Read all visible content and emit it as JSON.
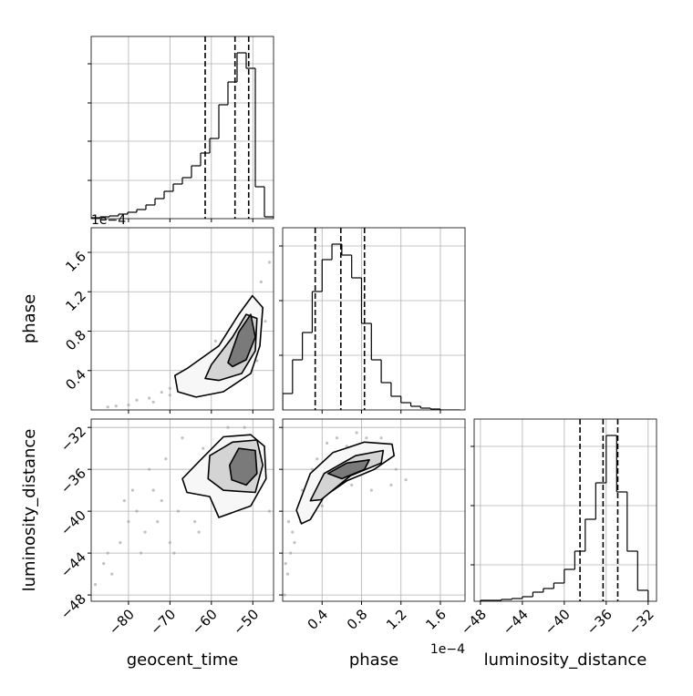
{
  "chart_data": [
    {
      "type": "histogram",
      "bins": [
        -89,
        -86.8,
        -84.6,
        -82.4,
        -80.2,
        -78,
        -75.8,
        -73.6,
        -71.4,
        -69.2,
        -67,
        -64.8,
        -62.6,
        -60.4,
        -58.2,
        -56,
        -53.8,
        -51.6,
        -49.4,
        -47.2,
        -45
      ],
      "values": [
        1,
        2,
        3,
        5,
        7,
        10,
        15,
        22,
        30,
        38,
        45,
        58,
        72,
        88,
        125,
        150,
        182,
        165,
        35,
        2
      ],
      "color": "#000000",
      "quantiles": [
        -61.5,
        -54.3,
        -51.0
      ],
      "xlim": [
        -89,
        -45
      ],
      "xticks": [
        -80,
        -70,
        -60,
        -50
      ],
      "ylim": [
        0,
        200
      ],
      "yticks": [
        42,
        85,
        127,
        170
      ],
      "xtick_labels": false,
      "ytick_labels": false,
      "grid": true
    },
    {
      "type": "scatter",
      "color": "#9a9a9a",
      "x": [
        -85,
        -80,
        -78,
        -75,
        -72,
        -70,
        -68,
        -66,
        -64,
        -62,
        -60,
        -58,
        -56,
        -54,
        -52,
        -50,
        -48,
        -46,
        -47,
        -49,
        -53,
        -57,
        -61,
        -65,
        -70,
        -74,
        -83,
        -59,
        -55,
        -51
      ],
      "y": [
        0.03,
        0.05,
        0.1,
        0.12,
        0.18,
        0.15,
        0.25,
        0.3,
        0.28,
        0.38,
        0.45,
        0.55,
        0.62,
        0.7,
        0.9,
        1.1,
        1.3,
        1.5,
        0.9,
        0.5,
        0.35,
        0.35,
        0.25,
        0.2,
        0.22,
        0.08,
        0.04,
        0.7,
        0.85,
        0.4
      ],
      "contours": [
        {
          "fill": "#f7f7f7",
          "x": [
            -68.1,
            -68.8,
            -65.9,
            -58.2,
            -53.4,
            -50.1,
            -47.6,
            -48.3,
            -50.5,
            -57.1,
            -63.7
          ],
          "y": [
            0.185,
            0.35,
            0.42,
            0.65,
            0.97,
            1.16,
            1.04,
            0.65,
            0.37,
            0.185,
            0.13
          ]
        },
        {
          "fill": "#d4d4d4",
          "x": [
            -61.5,
            -60.0,
            -54.9,
            -51.6,
            -49.0,
            -49.4,
            -52.7,
            -58.2
          ],
          "y": [
            0.32,
            0.46,
            0.74,
            0.97,
            0.93,
            0.6,
            0.37,
            0.3
          ]
        },
        {
          "fill": "#7a7a7a",
          "x": [
            -56.0,
            -53.4,
            -50.5,
            -49.4,
            -51.6,
            -54.9
          ],
          "y": [
            0.48,
            0.79,
            0.97,
            0.74,
            0.51,
            0.44
          ]
        }
      ],
      "xlim": [
        -89,
        -45
      ],
      "xticks": [
        -80,
        -70,
        -60,
        -50
      ],
      "ylim": [
        0,
        1.85
      ],
      "yticks": [
        0.4,
        0.8,
        1.2,
        1.6
      ],
      "xtick_labels": false,
      "ytick_labels": true,
      "ylabel": "phase",
      "y_offset_label": "1e−4",
      "grid": true
    },
    {
      "type": "histogram",
      "bins": [
        0,
        0.1,
        0.2,
        0.3,
        0.4,
        0.5,
        0.6,
        0.7,
        0.8,
        0.9,
        1.0,
        1.1,
        1.2,
        1.3,
        1.4,
        1.5,
        1.6,
        1.7,
        1.8
      ],
      "values": [
        18,
        55,
        85,
        130,
        165,
        182,
        170,
        145,
        95,
        55,
        30,
        15,
        8,
        4,
        2,
        1,
        0,
        0
      ],
      "color": "#000000",
      "quantiles": [
        0.33,
        0.59,
        0.83
      ],
      "xlim": [
        0,
        1.85
      ],
      "xticks": [
        0.4,
        0.8,
        1.2,
        1.6
      ],
      "ylim": [
        0,
        200
      ],
      "yticks": [
        60,
        120,
        180
      ],
      "xtick_labels": false,
      "ytick_labels": false,
      "grid": true
    },
    {
      "type": "scatter",
      "color": "#9a9a9a",
      "x": [
        -88,
        -85,
        -82,
        -80,
        -78,
        -76,
        -74,
        -72,
        -70,
        -68,
        -66,
        -64,
        -62,
        -60,
        -58,
        -75,
        -79,
        -71,
        -67,
        -84,
        -63,
        -56,
        -52,
        -48,
        -46,
        -69,
        -73,
        -81,
        -86,
        -77
      ],
      "y": [
        -47,
        -44,
        -43,
        -41,
        -40,
        -42,
        -38,
        -39,
        -43,
        -40,
        -37,
        -41,
        -34,
        -36,
        -40,
        -36,
        -38,
        -35,
        -33,
        -46,
        -42,
        -32,
        -32,
        -34,
        -40,
        -44,
        -41,
        -39,
        -45,
        -44
      ],
      "contours": [
        {
          "fill": "#f7f7f7",
          "x": [
            -62.6,
            -57.1,
            -50.5,
            -47.2,
            -46.8,
            -50.5,
            -58.2,
            -60.4,
            -65.9,
            -67.0
          ],
          "y": [
            -35.1,
            -32.9,
            -32.7,
            -33.8,
            -36.9,
            -39.5,
            -40.6,
            -38.6,
            -38.2,
            -36.9
          ]
        },
        {
          "fill": "#d4d4d4",
          "x": [
            -60.4,
            -54.9,
            -49.0,
            -47.6,
            -49.4,
            -57.1,
            -60.8
          ],
          "y": [
            -34.7,
            -33.4,
            -33.2,
            -35.6,
            -38.2,
            -38.0,
            -36.9
          ]
        },
        {
          "fill": "#7a7a7a",
          "x": [
            -55.6,
            -53.4,
            -49.4,
            -49.0,
            -51.6,
            -55.1
          ],
          "y": [
            -35.6,
            -34.0,
            -34.2,
            -36.4,
            -37.5,
            -37.0
          ]
        }
      ],
      "xlim": [
        -89,
        -45
      ],
      "xticks": [
        {
          "value": -80,
          "label": "−80"
        },
        {
          "value": -70,
          "label": "−70"
        },
        {
          "value": -60,
          "label": "−60"
        },
        {
          "value": -50,
          "label": "−50"
        }
      ],
      "ylim": [
        -48.6,
        -31.2
      ],
      "yticks": [
        {
          "value": -48,
          "label": "−48"
        },
        {
          "value": -44,
          "label": "−44"
        },
        {
          "value": -40,
          "label": "−40"
        },
        {
          "value": -36,
          "label": "−36"
        },
        {
          "value": -32,
          "label": "−32"
        }
      ],
      "xtick_labels": true,
      "ytick_labels": true,
      "xlabel": "geocent_time",
      "ylabel": "luminosity_distance",
      "grid": true
    },
    {
      "type": "scatter",
      "color": "#9a9a9a",
      "x": [
        0.02,
        0.05,
        0.08,
        0.1,
        0.12,
        0.15,
        0.2,
        0.25,
        0.3,
        0.35,
        0.45,
        0.55,
        0.65,
        0.75,
        0.85,
        0.95,
        1.05,
        1.15,
        1.25,
        1.1,
        0.9,
        0.7,
        0.5,
        0.4,
        0.18,
        0.06,
        0.03,
        0.6,
        0.8,
        1.0
      ],
      "y": [
        -48,
        -46,
        -44,
        -42,
        -43,
        -40,
        -38,
        -39,
        -36,
        -35,
        -33.5,
        -33,
        -33.8,
        -32.5,
        -33,
        -34,
        -35,
        -36,
        -37,
        -37.5,
        -38,
        -37.5,
        -38,
        -39.5,
        -41,
        -41,
        -45,
        -35,
        -36.5,
        -33
      ],
      "contours": [
        {
          "fill": "#f7f7f7",
          "x": [
            0.19,
            0.14,
            0.28,
            0.51,
            0.83,
            1.11,
            1.13,
            0.93,
            0.65,
            0.42,
            0.28
          ],
          "y": [
            -41.2,
            -39.9,
            -36.4,
            -34.4,
            -33.4,
            -33.6,
            -34.7,
            -36.0,
            -37.1,
            -38.6,
            -40.8
          ]
        },
        {
          "fill": "#d4d4d4",
          "x": [
            0.28,
            0.42,
            0.74,
            1.02,
            1.0,
            0.69,
            0.39
          ],
          "y": [
            -39.0,
            -36.4,
            -34.7,
            -34.2,
            -35.4,
            -36.6,
            -38.9
          ]
        },
        {
          "fill": "#7a7a7a",
          "x": [
            0.46,
            0.65,
            0.88,
            0.83,
            0.6
          ],
          "y": [
            -36.4,
            -35.4,
            -35.1,
            -36.0,
            -36.9
          ]
        }
      ],
      "xlim": [
        0,
        1.85
      ],
      "xticks": [
        0.4,
        0.8,
        1.2,
        1.6
      ],
      "ylim": [
        -48.6,
        -31.2
      ],
      "yticks": [
        -48,
        -44,
        -40,
        -36,
        -32
      ],
      "xtick_labels": true,
      "ytick_labels": false,
      "xlabel": "phase",
      "x_offset_label": "1e−4",
      "grid": true
    },
    {
      "type": "histogram",
      "bins": [
        -48,
        -47,
        -46,
        -45,
        -44,
        -43,
        -42,
        -41,
        -40,
        -39,
        -38,
        -37,
        -36,
        -35,
        -34,
        -33,
        -32
      ],
      "values": [
        1,
        1,
        2,
        3,
        5,
        10,
        14,
        20,
        35,
        55,
        90,
        130,
        182,
        120,
        55,
        12
      ],
      "color": "#000000",
      "quantiles": [
        -38.5,
        -36.3,
        -34.9
      ],
      "xlim": [
        -48.6,
        -31.2
      ],
      "xticks": [
        {
          "value": -48,
          "label": "−48"
        },
        {
          "value": -44,
          "label": "−44"
        },
        {
          "value": -40,
          "label": "−40"
        },
        {
          "value": -36,
          "label": "−36"
        },
        {
          "value": -32,
          "label": "−32"
        }
      ],
      "ylim": [
        0,
        200
      ],
      "yticks": [
        40,
        105,
        170
      ],
      "xtick_labels": true,
      "ytick_labels": false,
      "xlabel": "luminosity_distance",
      "grid": true
    }
  ]
}
